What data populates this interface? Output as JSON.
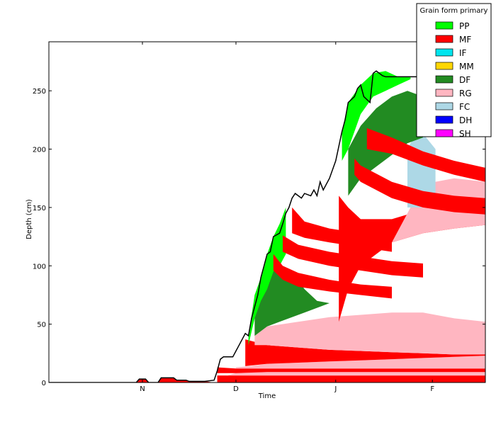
{
  "chart_data": {
    "type": "area",
    "title": "",
    "xlabel": "Time",
    "ylabel": "Depth (cm)",
    "ylim": [
      0,
      292
    ],
    "yticks": [
      0,
      50,
      100,
      150,
      200,
      250
    ],
    "ytick_labels": [
      "0",
      "50",
      "100",
      "150",
      "200",
      "250"
    ],
    "xlim": [
      0,
      140
    ],
    "xticks": [
      30,
      60,
      92,
      123
    ],
    "xtick_labels": [
      "N",
      "D",
      "J",
      "F"
    ],
    "legend": {
      "title": "Grain form primary",
      "placement": "top-right",
      "entries": [
        {
          "label": "PP",
          "color": "#00ff00"
        },
        {
          "label": "MF",
          "color": "#ff0000"
        },
        {
          "label": "IF",
          "color": "#00e5ee"
        },
        {
          "label": "MM",
          "color": "#ffd700"
        },
        {
          "label": "DF",
          "color": "#228b22"
        },
        {
          "label": "RG",
          "color": "#ffb6c1"
        },
        {
          "label": "FC",
          "color": "#add8e6"
        },
        {
          "label": "DH",
          "color": "#0000ff"
        },
        {
          "label": "SH",
          "color": "#ff00ff"
        }
      ]
    },
    "total_snow_depth": {
      "x": [
        0,
        28,
        29,
        31,
        32,
        35,
        36,
        40,
        41,
        44,
        45,
        50,
        53,
        54,
        55,
        56,
        59,
        60,
        61,
        63,
        64,
        65,
        67,
        68,
        69,
        70,
        71,
        72,
        74,
        75,
        76,
        77,
        78,
        79,
        80,
        81,
        82,
        84,
        85,
        86,
        87,
        88,
        90,
        92,
        94,
        95,
        96,
        98,
        99,
        100,
        101,
        103,
        104,
        105,
        106,
        107,
        108,
        110,
        112,
        114,
        115,
        116,
        118,
        120,
        121,
        122,
        124,
        126,
        128,
        130,
        132,
        134,
        136,
        138,
        140
      ],
      "y": [
        0,
        0,
        3,
        3,
        0,
        0,
        4,
        4,
        2,
        2,
        1,
        1,
        2,
        10,
        20,
        22,
        22,
        27,
        32,
        42,
        40,
        55,
        75,
        90,
        100,
        110,
        112,
        125,
        128,
        136,
        145,
        150,
        158,
        162,
        160,
        158,
        162,
        160,
        165,
        160,
        172,
        165,
        175,
        190,
        215,
        225,
        240,
        245,
        252,
        255,
        245,
        240,
        265,
        267,
        265,
        263,
        262,
        262,
        262,
        262,
        262,
        262,
        262,
        262,
        262,
        262,
        262,
        262,
        262,
        262,
        262,
        262,
        262,
        262,
        262
      ]
    },
    "series_layers_note_absent": true,
    "layers": [
      {
        "grain": "MF",
        "color": "#ff0000",
        "x": [
          28,
          29,
          31,
          32,
          35,
          36,
          40,
          41,
          44,
          45,
          50,
          53
        ],
        "bottom": [
          0,
          0,
          0,
          0,
          0,
          0,
          0,
          0,
          0,
          0,
          0,
          0
        ],
        "top": [
          0,
          3,
          3,
          0,
          0,
          4,
          4,
          2,
          2,
          1,
          1,
          0
        ]
      },
      {
        "grain": "MF",
        "color": "#ff0000",
        "x": [
          54,
          60,
          70,
          80,
          90,
          100,
          110,
          120,
          130,
          140
        ],
        "bottom": [
          0,
          0,
          0,
          0,
          0,
          0,
          0,
          0,
          0,
          0
        ],
        "top": [
          6,
          6,
          6,
          6,
          6,
          6,
          6,
          6,
          6,
          6
        ]
      },
      {
        "grain": "RG",
        "color": "#ffb6c1",
        "x": [
          57,
          60,
          70,
          80,
          90,
          100,
          110,
          120,
          130,
          140
        ],
        "bottom": [
          6,
          6,
          6,
          6,
          6,
          6,
          6,
          6,
          6,
          6
        ],
        "top": [
          6,
          8,
          9,
          9,
          9,
          9,
          9,
          9,
          9,
          9
        ]
      },
      {
        "grain": "MF",
        "color": "#ff0000",
        "x": [
          54,
          60,
          70,
          80,
          90,
          100,
          110,
          120,
          130,
          140
        ],
        "bottom": [
          8,
          8,
          9,
          9,
          9,
          9,
          9,
          9,
          9,
          9
        ],
        "top": [
          13,
          12,
          12,
          12,
          12,
          12,
          12,
          12,
          12,
          12
        ]
      },
      {
        "grain": "RG",
        "color": "#ffb6c1",
        "x": [
          60,
          65,
          70,
          80,
          90,
          100,
          110,
          120,
          130,
          140
        ],
        "bottom": [
          12,
          12,
          12,
          12,
          12,
          12,
          12,
          12,
          12,
          12
        ],
        "top": [
          13,
          14,
          16,
          17,
          18,
          19,
          20,
          21,
          22,
          23
        ]
      },
      {
        "grain": "MF",
        "color": "#ff0000",
        "x": [
          63,
          70,
          80,
          90,
          100,
          110,
          120,
          130,
          140
        ],
        "bottom": [
          14,
          16,
          17,
          18,
          19,
          20,
          21,
          22,
          23
        ],
        "top": [
          37,
          32,
          30,
          28,
          27,
          26,
          25,
          24,
          24
        ]
      },
      {
        "grain": "RG",
        "color": "#ffb6c1",
        "x": [
          66,
          70,
          80,
          90,
          100,
          110,
          120,
          130,
          140
        ],
        "bottom": [
          32,
          32,
          30,
          28,
          27,
          26,
          25,
          24,
          24
        ],
        "top": [
          40,
          48,
          52,
          56,
          58,
          60,
          60,
          55,
          52
        ]
      },
      {
        "grain": "DF",
        "color": "#228b22",
        "x": [
          66,
          70,
          74,
          78,
          82,
          86,
          90
        ],
        "bottom": [
          40,
          48,
          52,
          56,
          60,
          64,
          68
        ],
        "top": [
          75,
          95,
          100,
          95,
          80,
          70,
          68
        ]
      },
      {
        "grain": "PP",
        "color": "#00ff00",
        "x": [
          64,
          66,
          68,
          70,
          72,
          74,
          76
        ],
        "bottom": [
          32,
          55,
          70,
          80,
          95,
          100,
          110
        ],
        "top": [
          40,
          75,
          90,
          110,
          125,
          136,
          150
        ]
      },
      {
        "grain": "MF",
        "color": "#ff0000",
        "x": [
          72,
          75,
          80,
          90,
          100,
          110
        ],
        "bottom": [
          96,
          88,
          82,
          78,
          75,
          72
        ],
        "top": [
          110,
          100,
          94,
          88,
          84,
          82
        ]
      },
      {
        "grain": "MF",
        "color": "#ff0000",
        "x": [
          75,
          80,
          90,
          100,
          110,
          120
        ],
        "bottom": [
          112,
          106,
          100,
          96,
          92,
          90
        ],
        "top": [
          126,
          118,
          112,
          108,
          104,
          102
        ]
      },
      {
        "grain": "MF",
        "color": "#ff0000",
        "x": [
          78,
          82,
          90,
          100,
          110
        ],
        "bottom": [
          128,
          124,
          120,
          116,
          112
        ],
        "top": [
          150,
          138,
          132,
          128,
          124
        ]
      },
      {
        "grain": "MF",
        "color": "#ff0000",
        "x": [
          93,
          96,
          100,
          110,
          120,
          130,
          140
        ],
        "bottom": [
          52,
          80,
          100,
          120,
          128,
          132,
          135
        ],
        "top": [
          160,
          150,
          140,
          140,
          148,
          150,
          150
        ]
      },
      {
        "grain": "RG",
        "color": "#ffb6c1",
        "x": [
          100,
          110,
          120,
          130,
          140
        ],
        "bottom": [
          100,
          120,
          128,
          132,
          135
        ],
        "top": [
          100,
          120,
          170,
          175,
          172
        ]
      },
      {
        "grain": "FC",
        "color": "#add8e6",
        "x": [
          115,
          118,
          121,
          124
        ],
        "bottom": [
          150,
          150,
          150,
          150
        ],
        "top": [
          200,
          215,
          210,
          200
        ]
      },
      {
        "grain": "DF",
        "color": "#228b22",
        "x": [
          96,
          100,
          105,
          110,
          115,
          120
        ],
        "bottom": [
          160,
          175,
          185,
          195,
          205,
          210
        ],
        "top": [
          200,
          220,
          235,
          245,
          250,
          245
        ]
      },
      {
        "grain": "PP",
        "color": "#00ff00",
        "x": [
          94,
          96,
          100,
          104,
          108,
          112,
          116
        ],
        "bottom": [
          190,
          200,
          230,
          245,
          250,
          255,
          260
        ],
        "top": [
          215,
          240,
          255,
          265,
          267,
          262,
          262
        ]
      },
      {
        "grain": "MF",
        "color": "#ff0000",
        "x": [
          98,
          100,
          110,
          120,
          130,
          140
        ],
        "bottom": [
          178,
          172,
          158,
          150,
          146,
          144
        ],
        "top": [
          192,
          186,
          172,
          164,
          160,
          158
        ]
      },
      {
        "grain": "MF",
        "color": "#ff0000",
        "x": [
          102,
          110,
          120,
          130,
          140
        ],
        "bottom": [
          200,
          196,
          186,
          178,
          172
        ],
        "top": [
          218,
          210,
          198,
          190,
          184
        ]
      }
    ]
  }
}
